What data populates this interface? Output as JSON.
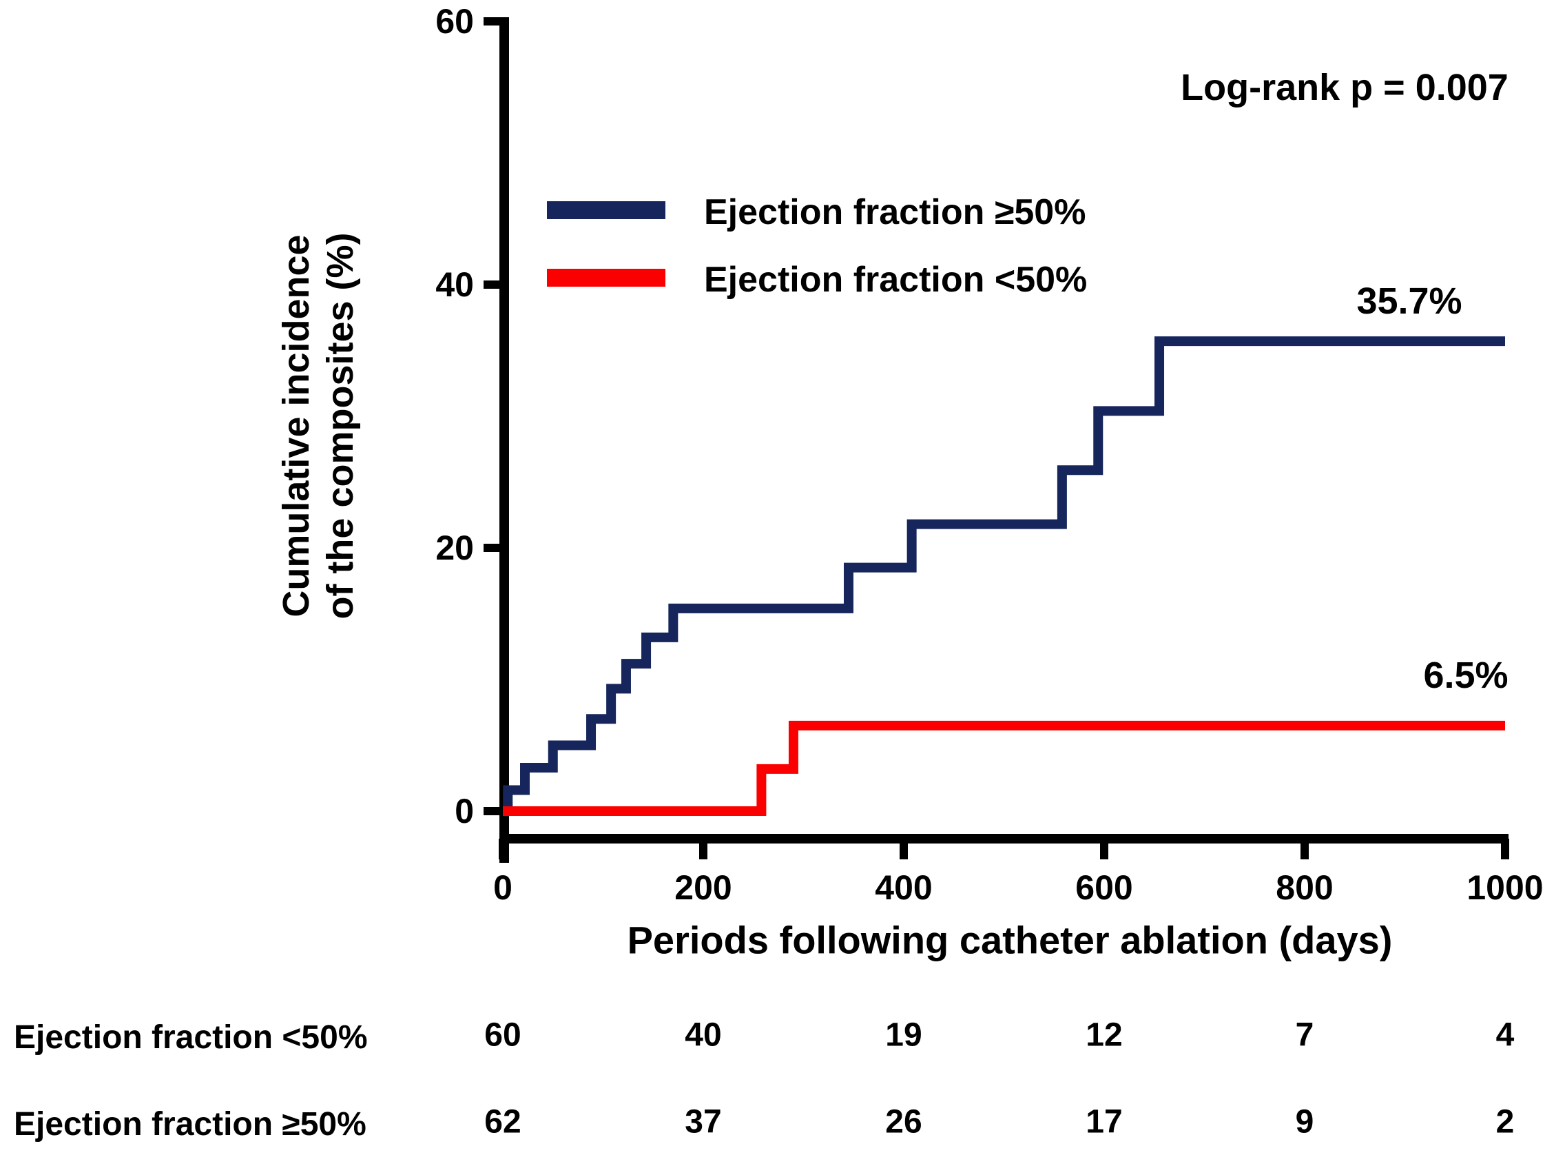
{
  "annotations": {
    "log_rank": "Log-rank p = 0.007",
    "blue_end_label": "35.7%",
    "red_end_label": "6.5%"
  },
  "colors": {
    "navy": "#16265C",
    "red": "#FA0000",
    "axis": "#000000"
  },
  "legend": {
    "items": [
      {
        "label": "Ejection fraction ≥50%",
        "color": "#16265C"
      },
      {
        "label": "Ejection fraction <50%",
        "color": "#FA0000"
      }
    ]
  },
  "chart_data": {
    "type": "line",
    "subtype": "kaplan-meier-cumulative-incidence-steps",
    "title": "",
    "xlabel": "Periods following catheter ablation (days)",
    "ylabel_lines": "Cumulative incidence\nof the composites (%)",
    "xlim": [
      0,
      1000
    ],
    "ylim": [
      0,
      60
    ],
    "xticks": [
      0,
      200,
      400,
      600,
      800,
      1000
    ],
    "yticks": [
      0,
      20,
      40,
      60
    ],
    "grid": false,
    "legend_position": "upper-left-inside",
    "annotation": "Log-rank p = 0.007",
    "series": [
      {
        "name": "Ejection fraction ≥50%",
        "color": "#16265C",
        "end_label": "35.7%",
        "points": [
          [
            0,
            0
          ],
          [
            5,
            1.6
          ],
          [
            22,
            3.3
          ],
          [
            50,
            5.0
          ],
          [
            88,
            7.0
          ],
          [
            108,
            9.3
          ],
          [
            123,
            11.2
          ],
          [
            143,
            13.2
          ],
          [
            170,
            15.4
          ],
          [
            345,
            18.5
          ],
          [
            408,
            21.8
          ],
          [
            558,
            25.9
          ],
          [
            594,
            30.4
          ],
          [
            655,
            35.7
          ],
          [
            1000,
            35.7
          ]
        ]
      },
      {
        "name": "Ejection fraction <50%",
        "color": "#FA0000",
        "end_label": "6.5%",
        "points": [
          [
            0,
            0
          ],
          [
            258,
            3.2
          ],
          [
            290,
            6.5
          ],
          [
            1000,
            6.5
          ]
        ]
      }
    ]
  },
  "risk_table": {
    "timepoints": [
      0,
      200,
      400,
      600,
      800,
      1000
    ],
    "rows": [
      {
        "label": "Ejection fraction <50%",
        "counts": [
          "60",
          "40",
          "19",
          "12",
          "7",
          "4"
        ]
      },
      {
        "label": "Ejection fraction ≥50%",
        "counts": [
          "62",
          "37",
          "26",
          "17",
          "9",
          "2"
        ]
      }
    ]
  }
}
